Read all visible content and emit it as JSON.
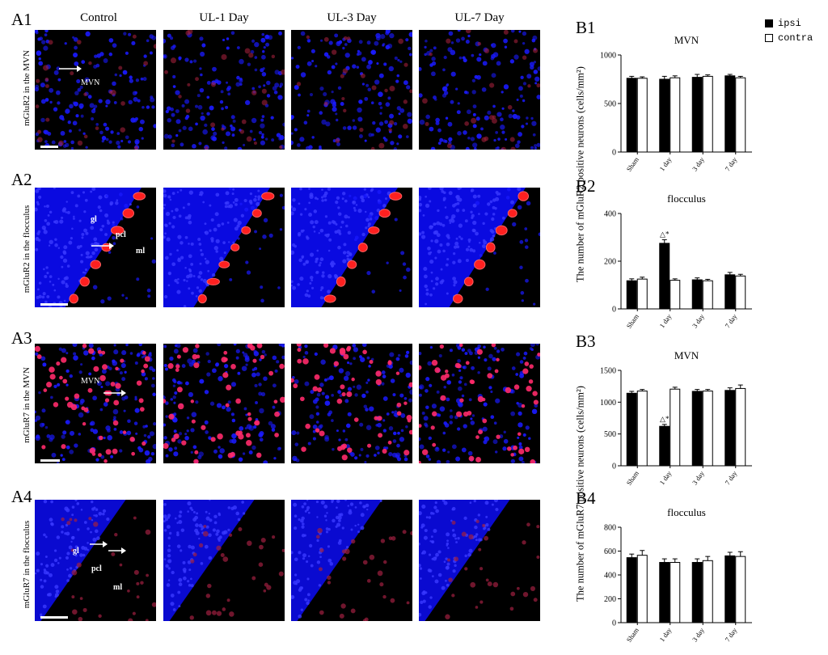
{
  "panel_labels": {
    "A1": "A1",
    "A2": "A2",
    "A3": "A3",
    "A4": "A4",
    "B1": "B1",
    "B2": "B2",
    "B3": "B3",
    "B4": "B4"
  },
  "column_headers": [
    "Control",
    "UL-1 Day",
    "UL-3 Day",
    "UL-7 Day"
  ],
  "row_labels": [
    "mGluR2  in the MVN",
    "mGluR2 in the flocculus",
    "mGluR7 in the MVN",
    "mGluR7 in the flocculus"
  ],
  "overlays": {
    "a1_mvn": "MVN",
    "a2_gl": "gl",
    "a2_pcl": "pcl",
    "a2_ml": "ml",
    "a3_mvn": "MVN",
    "a4_gl": "gl",
    "a4_pcl": "pcl",
    "a4_ml": "ml"
  },
  "legend": {
    "ipsi": "ipsi",
    "contra": "contra"
  },
  "y_axis_titles": {
    "mglur2": "The number of mGluR2 positive neurons (cells/mm²)",
    "mglur7": "The number of mGluR7 positive neurons (cells/mm²)"
  },
  "colors": {
    "ipsi": "#000000",
    "contra": "#ffffff",
    "nuclei": "#1a1aff",
    "label": "#ff2020",
    "background": "#000000"
  },
  "chart_data": [
    {
      "type": "bar",
      "panel": "B1",
      "title": "MVN",
      "categories": [
        "Sham",
        "1 day",
        "3 day",
        "7 day"
      ],
      "series": [
        {
          "name": "ipsi",
          "values": [
            760,
            750,
            770,
            785
          ],
          "errors": [
            20,
            30,
            30,
            15
          ]
        },
        {
          "name": "contra",
          "values": [
            760,
            765,
            780,
            765
          ],
          "errors": [
            15,
            20,
            15,
            15
          ]
        }
      ],
      "ylim": [
        0,
        1000
      ],
      "yticks": [
        0,
        500,
        1000
      ],
      "annotations": []
    },
    {
      "type": "bar",
      "panel": "B2",
      "title": "flocculus",
      "categories": [
        "Sham",
        "1 day",
        "3 day",
        "7 day"
      ],
      "series": [
        {
          "name": "ipsi",
          "values": [
            118,
            275,
            122,
            143
          ],
          "errors": [
            8,
            15,
            8,
            10
          ]
        },
        {
          "name": "contra",
          "values": [
            125,
            120,
            118,
            138
          ],
          "errors": [
            8,
            6,
            6,
            7
          ]
        }
      ],
      "ylim": [
        0,
        400
      ],
      "yticks": [
        0,
        200,
        400
      ],
      "annotations": [
        {
          "category": "1 day",
          "series": "ipsi",
          "text": "△*"
        }
      ]
    },
    {
      "type": "bar",
      "panel": "B3",
      "title": "MVN",
      "categories": [
        "Sham",
        "1 day",
        "3 day",
        "7 day"
      ],
      "series": [
        {
          "name": "ipsi",
          "values": [
            1140,
            620,
            1170,
            1185
          ],
          "errors": [
            30,
            30,
            30,
            40
          ]
        },
        {
          "name": "contra",
          "values": [
            1175,
            1205,
            1175,
            1215
          ],
          "errors": [
            25,
            30,
            25,
            55
          ]
        }
      ],
      "ylim": [
        0,
        1500
      ],
      "yticks": [
        0,
        500,
        1000,
        1500
      ],
      "annotations": [
        {
          "category": "1 day",
          "series": "ipsi",
          "text": "△*"
        }
      ]
    },
    {
      "type": "bar",
      "panel": "B4",
      "title": "flocculus",
      "categories": [
        "Sham",
        "1 day",
        "3 day",
        "7 day"
      ],
      "series": [
        {
          "name": "ipsi",
          "values": [
            545,
            505,
            505,
            560
          ],
          "errors": [
            30,
            30,
            30,
            30
          ]
        },
        {
          "name": "contra",
          "values": [
            565,
            505,
            520,
            555
          ],
          "errors": [
            40,
            30,
            35,
            40
          ]
        }
      ],
      "ylim": [
        0,
        800
      ],
      "yticks": [
        0,
        200,
        400,
        600,
        800
      ],
      "annotations": []
    }
  ]
}
